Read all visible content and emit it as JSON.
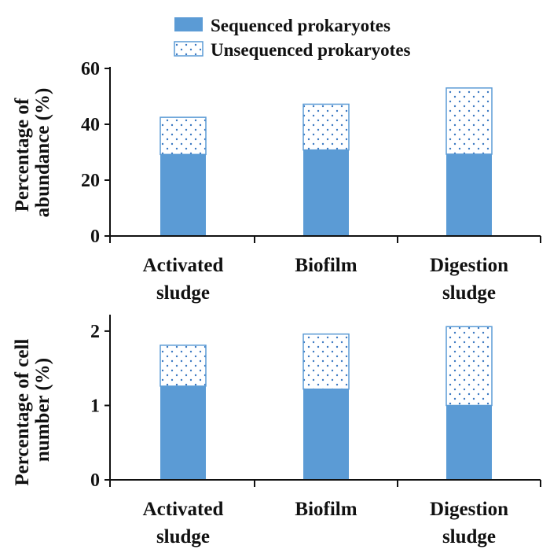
{
  "colors": {
    "sequenced": "#5b9bd5",
    "unsequenced_fill": "#ffffff",
    "unsequenced_border": "#5b9bd5",
    "axis": "#111111"
  },
  "legend": {
    "items": [
      {
        "label": "Sequenced prokaryotes",
        "style": "solid"
      },
      {
        "label": "Unsequenced prokaryotes",
        "style": "dotted"
      }
    ]
  },
  "chart_data": [
    {
      "type": "bar",
      "stacked": true,
      "categories": [
        [
          "Activated",
          "sludge"
        ],
        [
          "Biofilm"
        ],
        [
          "Digestion",
          "sludge"
        ]
      ],
      "series": [
        {
          "name": "Sequenced prokaryotes",
          "values": [
            29.2,
            30.8,
            29.3
          ]
        },
        {
          "name": "Unsequenced prokaryotes",
          "values": [
            13.3,
            16.4,
            23.7
          ]
        }
      ],
      "ylabel": [
        "Percentage of",
        "abundance  (%)"
      ],
      "ylim": [
        0,
        60
      ],
      "yticks": [
        0,
        20,
        40,
        60
      ],
      "grid": false,
      "legend_position": "top-center"
    },
    {
      "type": "bar",
      "stacked": true,
      "categories": [
        [
          "Activated",
          "sludge"
        ],
        [
          "Biofilm"
        ],
        [
          "Digestion",
          "sludge"
        ]
      ],
      "series": [
        {
          "name": "Sequenced prokaryotes",
          "values": [
            1.26,
            1.22,
            1.0
          ]
        },
        {
          "name": "Unsequenced prokaryotes",
          "values": [
            0.55,
            0.74,
            1.06
          ]
        }
      ],
      "ylabel": [
        "Percentage of cell",
        "number (%)"
      ],
      "ylim": [
        0,
        2.2
      ],
      "yticks": [
        0,
        1,
        2
      ],
      "grid": false
    }
  ]
}
